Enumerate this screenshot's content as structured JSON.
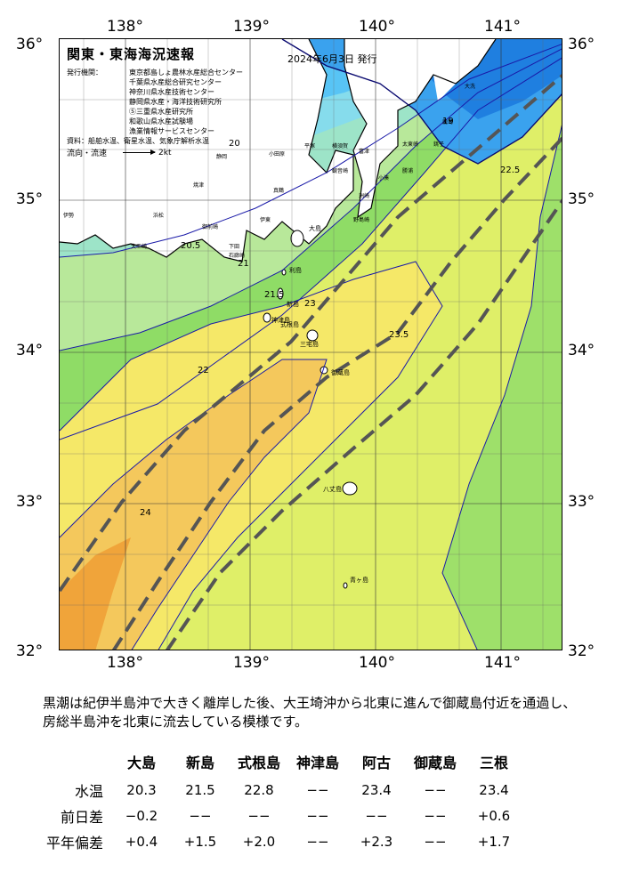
{
  "title": "関東・東海海況速報",
  "issue_date": "2024年6月3日 発行",
  "publishers": {
    "label": "発行機関：",
    "items": [
      "東京都島しょ農林水産総合センター",
      "千葉県水産総合研究センター",
      "神奈川県水産技術センター",
      "静岡県水産・海洋技術研究所",
      "Ⓢ三重県水産研究所",
      "和歌山県水産試験場",
      "漁業情報サービスセンター"
    ]
  },
  "sources": {
    "label": "資料：",
    "text": "船舶水温、衛星水温、気象庁解析水温"
  },
  "flow_legend": {
    "label": "流向・流速",
    "unit": "2kt"
  },
  "axes": {
    "lon_ticks": [
      "138°",
      "139°",
      "140°",
      "141°"
    ],
    "lat_ticks": [
      "36°",
      "35°",
      "34°",
      "33°",
      "32°"
    ]
  },
  "map_labels": {
    "places": [
      "大洗",
      "鹿島",
      "銚子",
      "太東崎",
      "勝浦",
      "小湊",
      "洲崎",
      "富津",
      "観音崎",
      "横須賀",
      "平塚",
      "真鶴",
      "小田原",
      "伊東",
      "下田",
      "石廊崎",
      "御前崎",
      "焼津",
      "静岡",
      "浜松",
      "伊勢",
      "大王崎",
      "野島崎"
    ],
    "islands": [
      "大島",
      "利島",
      "新島",
      "式根島",
      "神津島",
      "三宅島",
      "御蔵島",
      "八丈島",
      "青ヶ島"
    ]
  },
  "contour_labels": [
    "19",
    "20",
    "20.5",
    "21",
    "21.5",
    "22",
    "22.5",
    "23",
    "23.5",
    "24"
  ],
  "description": "黒潮は紀伊半島沖で大きく離岸した後、大王埼沖から北東に進んで御蔵島付近を通過し、房総半島沖を北東に流去している模様です。",
  "table": {
    "columns": [
      "大島",
      "新島",
      "式根島",
      "神津島",
      "阿古",
      "御蔵島",
      "三根"
    ],
    "rows": [
      {
        "label": "水温",
        "values": [
          "20.3",
          "21.5",
          "22.8",
          "−−",
          "23.4",
          "−−",
          "23.4"
        ]
      },
      {
        "label": "前日差",
        "values": [
          "−0.2",
          "−−",
          "−−",
          "−−",
          "−−",
          "−−",
          "+0.6"
        ]
      },
      {
        "label": "平年偏差",
        "values": [
          "+0.4",
          "+1.5",
          "+2.0",
          "−−",
          "+2.3",
          "−−",
          "+1.7"
        ]
      }
    ]
  },
  "colors": {
    "c18": "#1f7fe0",
    "c19": "#3aa2ee",
    "c20": "#58c4f5",
    "c205": "#86dcec",
    "c21": "#9de4c8",
    "c215": "#b8e89a",
    "c22": "#8fdc66",
    "c225": "#9ee06a",
    "c23": "#dfef68",
    "c235": "#f5e868",
    "c24": "#f4c85c",
    "c245": "#f0a43a",
    "land": "#ffffff",
    "coast": "#000000",
    "kuroshio": "#555555"
  }
}
